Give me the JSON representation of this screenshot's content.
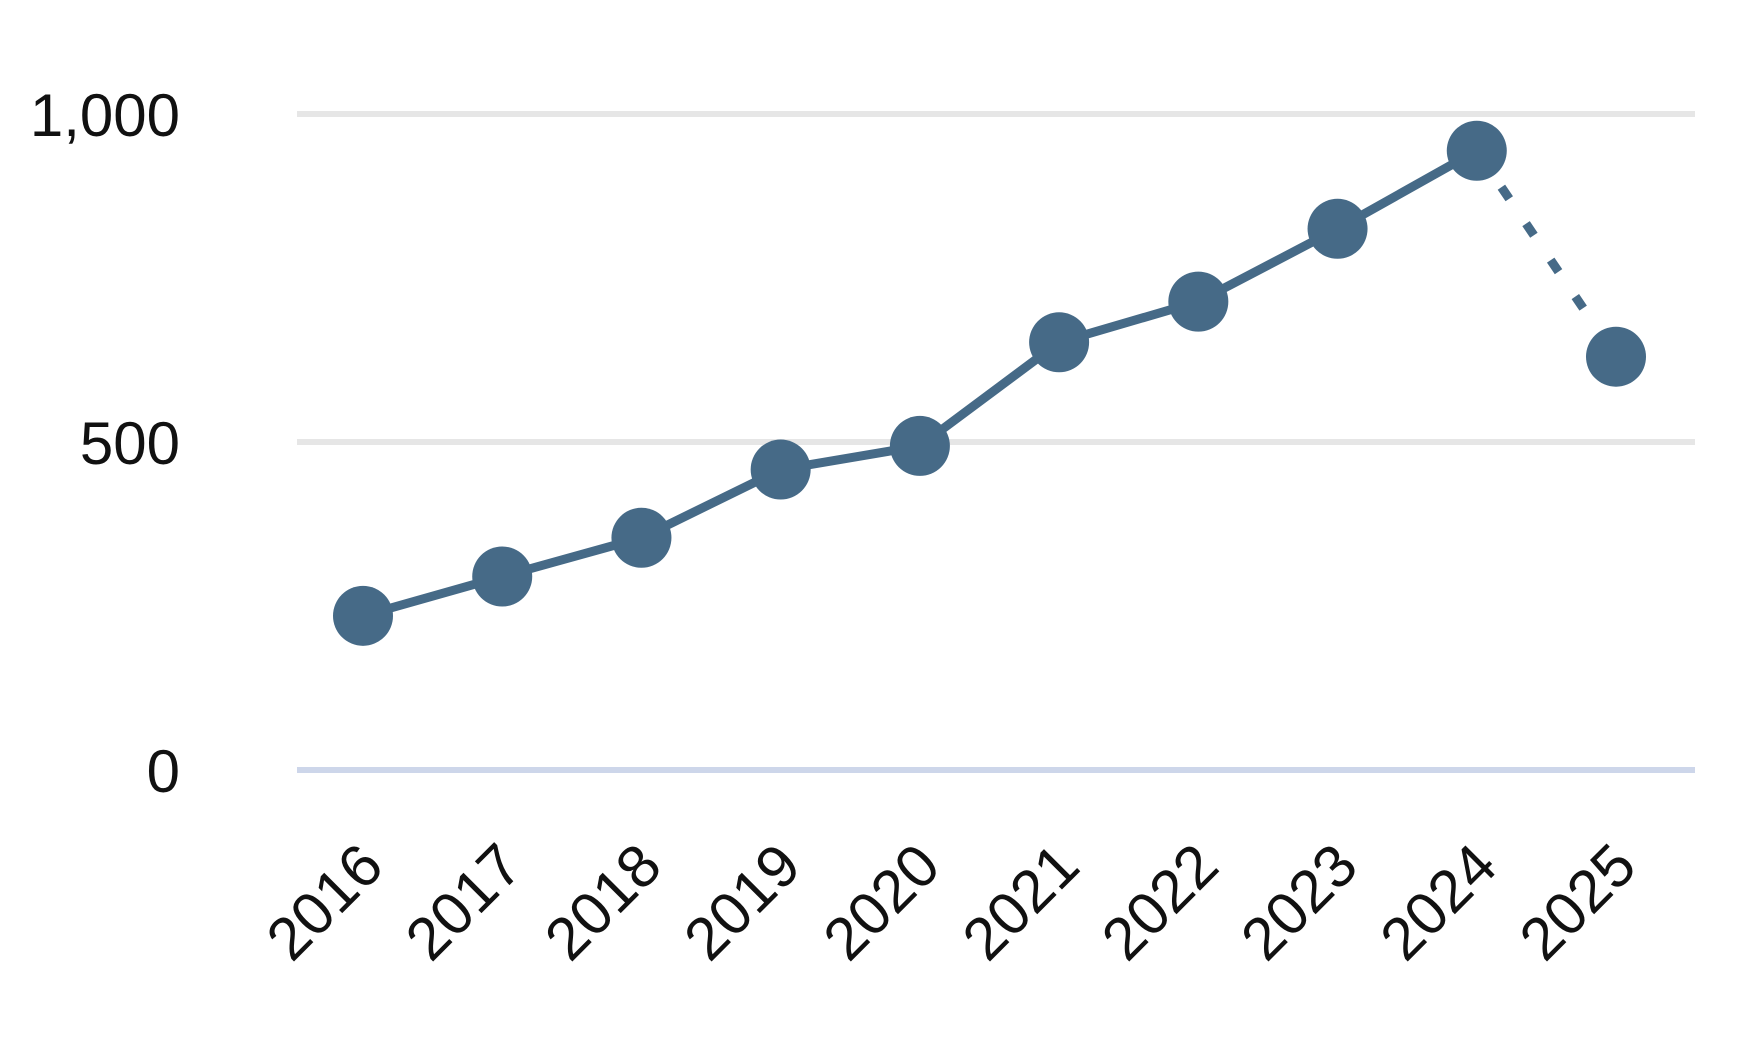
{
  "chart_data": {
    "type": "line",
    "categories": [
      "2016",
      "2017",
      "2018",
      "2019",
      "2020",
      "2021",
      "2022",
      "2023",
      "2024",
      "2025"
    ],
    "series": [
      {
        "color": "#466a87",
        "values": [
          235,
          295,
          354,
          458,
          494,
          652,
          714,
          825,
          944,
          630
        ]
      }
    ],
    "dashed_last_segment": true,
    "ylim": [
      0,
      1000
    ],
    "yticks": [
      0,
      500,
      {
        "value": 1000,
        "label": "1,000"
      }
    ],
    "grid": true
  }
}
